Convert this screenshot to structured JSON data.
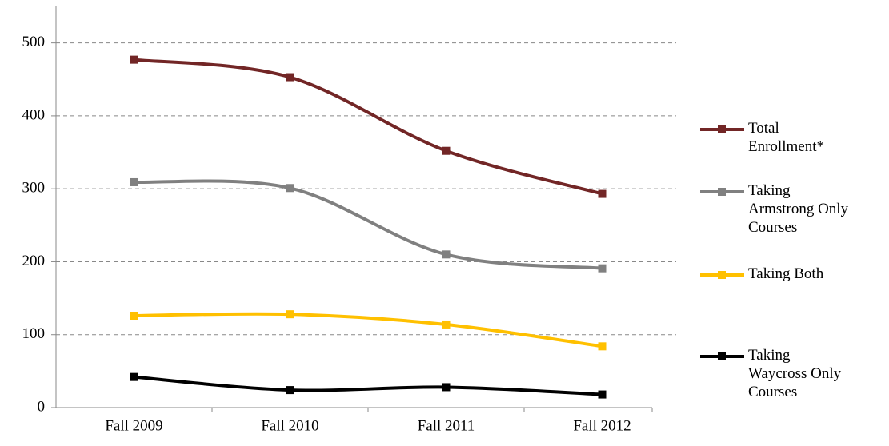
{
  "chart_data": {
    "type": "line",
    "categories": [
      "Fall 2009",
      "Fall 2010",
      "Fall 2011",
      "Fall 2012"
    ],
    "series": [
      {
        "name": "Total Enrollment*",
        "color": "#722626",
        "values": [
          477,
          453,
          352,
          293
        ]
      },
      {
        "name": "Taking Armstrong Only Courses",
        "color": "#808080",
        "values": [
          309,
          301,
          210,
          191
        ]
      },
      {
        "name": "Taking Both",
        "color": "#ffc000",
        "values": [
          126,
          128,
          114,
          84
        ]
      },
      {
        "name": "Taking Waycross Only Courses",
        "color": "#000000",
        "values": [
          42,
          24,
          28,
          18
        ]
      }
    ],
    "ylim": [
      0,
      550
    ],
    "yticks": [
      0,
      100,
      200,
      300,
      400,
      500
    ],
    "grid": true,
    "smooth": true,
    "legend": "right"
  }
}
